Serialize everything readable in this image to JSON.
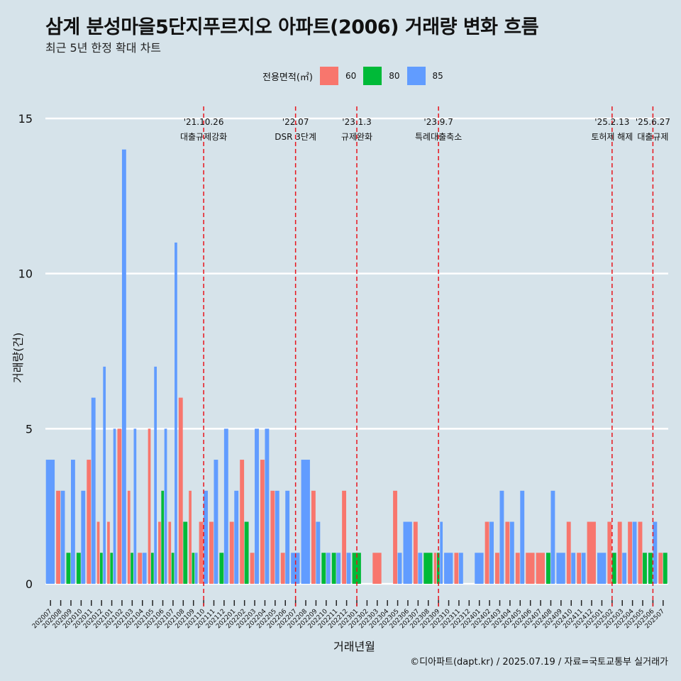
{
  "title": "삼계 분성마을5단지푸르지오 아파트(2006) 거래량 변화 흐름",
  "subtitle": "최근 5년 한정 확대 차트",
  "caption": "©디아파트(dapt.kr) / 2025.07.19 / 자료=국토교통부 실거래가",
  "legend": {
    "title": "전용면적(㎡)",
    "items": [
      {
        "label": "60",
        "color": "#f8766d"
      },
      {
        "label": "80",
        "color": "#00ba38"
      },
      {
        "label": "85",
        "color": "#619cff"
      }
    ]
  },
  "chart_data": {
    "type": "bar",
    "xlabel": "거래년월",
    "ylabel": "거래량(건)",
    "ylim": [
      0,
      15
    ],
    "yticks": [
      0,
      5,
      10,
      15
    ],
    "grid": true,
    "categories": [
      "202007",
      "202008",
      "202009",
      "202010",
      "202011",
      "202012",
      "202101",
      "202102",
      "202103",
      "202104",
      "202105",
      "202106",
      "202107",
      "202108",
      "202109",
      "202110",
      "202111",
      "202112",
      "202201",
      "202202",
      "202203",
      "202204",
      "202205",
      "202206",
      "202207",
      "202208",
      "202209",
      "202210",
      "202211",
      "202212",
      "202301",
      "202302",
      "202303",
      "202304",
      "202305",
      "202306",
      "202307",
      "202308",
      "202309",
      "202310",
      "202311",
      "202312",
      "202401",
      "202402",
      "202403",
      "202404",
      "202405",
      "202406",
      "202407",
      "202408",
      "202409",
      "202410",
      "202411",
      "202412",
      "202501",
      "202502",
      "202503",
      "202504",
      "202505",
      "202506",
      "202507"
    ],
    "series": [
      {
        "name": "60",
        "color": "#f8766d",
        "values": [
          0,
          3,
          0,
          0,
          4,
          2,
          2,
          5,
          3,
          1,
          5,
          2,
          2,
          6,
          3,
          2,
          2,
          0,
          2,
          4,
          1,
          4,
          3,
          1,
          0,
          0,
          3,
          0,
          0,
          3,
          0,
          0,
          1,
          0,
          3,
          0,
          2,
          0,
          1,
          0,
          1,
          0,
          0,
          2,
          1,
          2,
          1,
          1,
          1,
          0,
          0,
          2,
          1,
          2,
          0,
          2,
          2,
          2,
          2,
          0,
          1
        ]
      },
      {
        "name": "80",
        "color": "#00ba38",
        "values": [
          0,
          0,
          1,
          1,
          0,
          1,
          1,
          0,
          1,
          0,
          1,
          3,
          1,
          2,
          1,
          0,
          0,
          1,
          0,
          2,
          0,
          0,
          0,
          0,
          0,
          0,
          0,
          1,
          1,
          0,
          1,
          0,
          0,
          0,
          0,
          0,
          0,
          1,
          1,
          0,
          0,
          0,
          0,
          0,
          0,
          0,
          0,
          0,
          0,
          1,
          0,
          0,
          0,
          0,
          0,
          1,
          0,
          0,
          1,
          1,
          1
        ]
      },
      {
        "name": "85",
        "color": "#619cff",
        "values": [
          4,
          3,
          4,
          3,
          6,
          7,
          5,
          14,
          5,
          1,
          7,
          5,
          11,
          0,
          1,
          3,
          4,
          5,
          3,
          0,
          5,
          5,
          3,
          3,
          1,
          4,
          2,
          1,
          1,
          1,
          0,
          0,
          0,
          0,
          1,
          2,
          1,
          0,
          2,
          1,
          1,
          0,
          1,
          2,
          3,
          2,
          3,
          0,
          0,
          3,
          1,
          1,
          1,
          0,
          1,
          0,
          1,
          2,
          0,
          2,
          0
        ]
      }
    ],
    "events": [
      {
        "date": "'21.10.26",
        "label": "대출규제강화",
        "category": "202110"
      },
      {
        "date": "'22.07",
        "label": "DSR 3단계",
        "category": "202207"
      },
      {
        "date": "'23.1.3",
        "label": "규제완화",
        "category": "202301"
      },
      {
        "date": "'23.9.7",
        "label": "특례대출축소",
        "category": "202309"
      },
      {
        "date": "'25.2.13",
        "label": "토허제 해제",
        "category": "202502"
      },
      {
        "date": "'25.6.27",
        "label": "대출규제",
        "category": "202506"
      }
    ]
  }
}
